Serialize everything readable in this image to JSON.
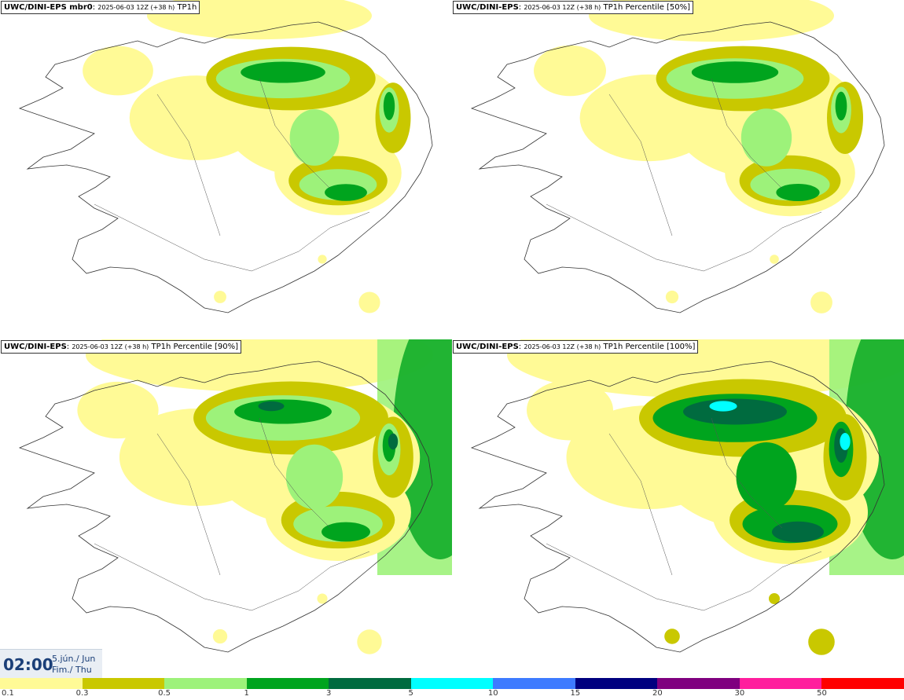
{
  "panels": [
    {
      "model": "UWC/DINI-EPS mbr0",
      "run": "2025-06-03 12Z (+38 h)",
      "field": "TP1h",
      "intensity": 0.55
    },
    {
      "model": "UWC/DINI-EPS",
      "run": "2025-06-03 12Z (+38 h)",
      "field": "TP1h Percentile [50%]",
      "intensity": 0.6
    },
    {
      "model": "UWC/DINI-EPS",
      "run": "2025-06-03 12Z (+38 h)",
      "field": "TP1h Percentile [90%]",
      "intensity": 0.85
    },
    {
      "model": "UWC/DINI-EPS",
      "run": "2025-06-03 12Z (+38 h)",
      "field": "TP1h Percentile [100%]",
      "intensity": 1.0
    }
  ],
  "valid_time": {
    "time": "02:00",
    "date_line1": "5.jún./ Jun",
    "date_line2": "Fim./ Thu"
  },
  "legend": {
    "ticks": [
      "0.1",
      "0.3",
      "0.5",
      "1",
      "3",
      "5",
      "10",
      "15",
      "20",
      "30",
      "50"
    ],
    "colors": [
      "#fffa96",
      "#c9c800",
      "#9df27a",
      "#00a41e",
      "#006b3f",
      "#00ffff",
      "#3e7bff",
      "#00007f",
      "#7f007f",
      "#ff1e9d",
      "#ff0000"
    ]
  }
}
